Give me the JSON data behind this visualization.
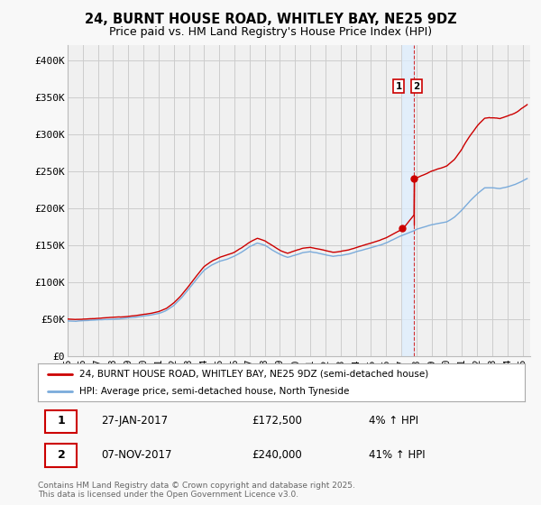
{
  "title_line1": "24, BURNT HOUSE ROAD, WHITLEY BAY, NE25 9DZ",
  "title_line2": "Price paid vs. HM Land Registry's House Price Index (HPI)",
  "ylabel_ticks": [
    "£0",
    "£50K",
    "£100K",
    "£150K",
    "£200K",
    "£250K",
    "£300K",
    "£350K",
    "£400K"
  ],
  "ytick_values": [
    0,
    50000,
    100000,
    150000,
    200000,
    250000,
    300000,
    350000,
    400000
  ],
  "ylim": [
    0,
    420000
  ],
  "sale1_date_str": "27-JAN-2017",
  "sale1_price": 172500,
  "sale1_pct": "4%",
  "sale2_date_str": "07-NOV-2017",
  "sale2_price": 240000,
  "sale2_pct": "41%",
  "legend_label_red": "24, BURNT HOUSE ROAD, WHITLEY BAY, NE25 9DZ (semi-detached house)",
  "legend_label_blue": "HPI: Average price, semi-detached house, North Tyneside",
  "footer_text": "Contains HM Land Registry data © Crown copyright and database right 2025.\nThis data is licensed under the Open Government Licence v3.0.",
  "line_color_red": "#cc0000",
  "line_color_blue": "#7aabdb",
  "marker_color_red": "#cc0000",
  "vline_color": "#cc0000",
  "band_color": "#ddeeff",
  "background_color": "#f8f8f8",
  "plot_bg_color": "#f0f0f0",
  "grid_color": "#cccccc",
  "title_fontsize": 10.5,
  "subtitle_fontsize": 9,
  "tick_fontsize": 8,
  "sale1_x_year": 2017.07,
  "sale2_x_year": 2017.85,
  "x_start_year": 1995.0,
  "x_end_year": 2025.5,
  "xtick_labels": [
    "95",
    "96",
    "97",
    "98",
    "99",
    "00",
    "01",
    "02",
    "03",
    "04",
    "05",
    "06",
    "07",
    "08",
    "09",
    "10",
    "11",
    "12",
    "13",
    "14",
    "15",
    "16",
    "17",
    "18",
    "19",
    "20",
    "21",
    "22",
    "23",
    "24",
    "25"
  ],
  "xtick_years": [
    1995,
    1996,
    1997,
    1998,
    1999,
    2000,
    2001,
    2002,
    2003,
    2004,
    2005,
    2006,
    2007,
    2008,
    2009,
    2010,
    2011,
    2012,
    2013,
    2014,
    2015,
    2016,
    2017,
    2018,
    2019,
    2020,
    2021,
    2022,
    2023,
    2024,
    2025
  ]
}
